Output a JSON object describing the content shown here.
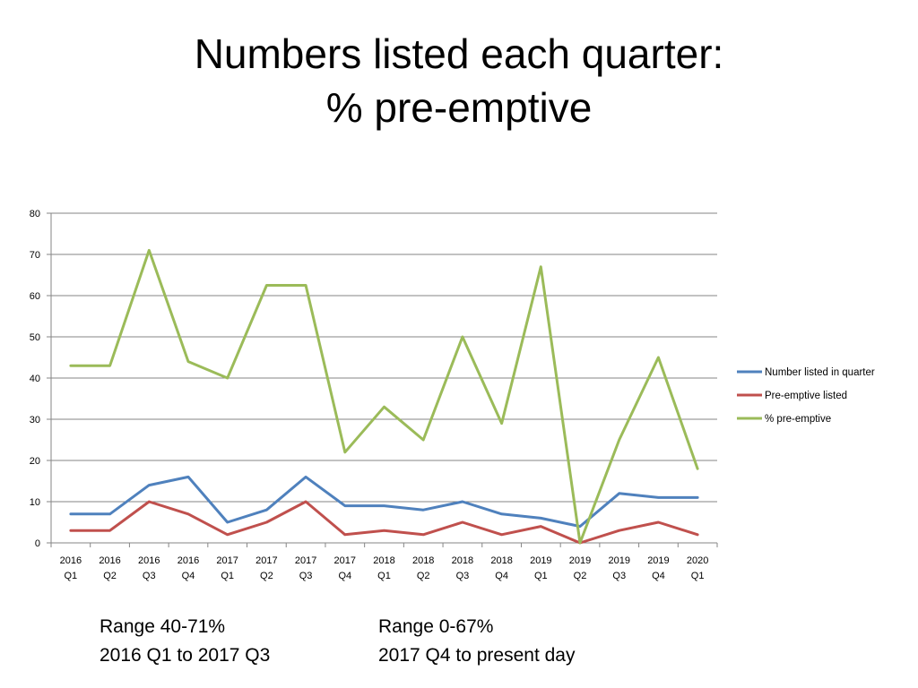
{
  "slide": {
    "title_line1": "Numbers listed each quarter:",
    "title_line2": "% pre-emptive",
    "note_left": {
      "line1": "Range 40-71%",
      "line2": "2016 Q1 to 2017 Q3"
    },
    "note_right": {
      "line1": "Range 0-67%",
      "line2": "2017 Q4 to present day"
    }
  },
  "chart_data": {
    "type": "line",
    "categories": [
      [
        "2016",
        "Q1"
      ],
      [
        "2016",
        "Q2"
      ],
      [
        "2016",
        "Q3"
      ],
      [
        "2016",
        "Q4"
      ],
      [
        "2017",
        "Q1"
      ],
      [
        "2017",
        "Q2"
      ],
      [
        "2017",
        "Q3"
      ],
      [
        "2017",
        "Q4"
      ],
      [
        "2018",
        "Q1"
      ],
      [
        "2018",
        "Q2"
      ],
      [
        "2018",
        "Q3"
      ],
      [
        "2018",
        "Q4"
      ],
      [
        "2019",
        "Q1"
      ],
      [
        "2019",
        "Q2"
      ],
      [
        "2019",
        "Q3"
      ],
      [
        "2019",
        "Q4"
      ],
      [
        "2020",
        "Q1"
      ]
    ],
    "ylim": [
      0,
      80
    ],
    "yticks": [
      0,
      10,
      20,
      30,
      40,
      50,
      60,
      70,
      80
    ],
    "grid": true,
    "legend_position": "right",
    "series": [
      {
        "name": "Number listed in quarter",
        "color": "#4f81bd",
        "values": [
          7,
          7,
          14,
          16,
          5,
          8,
          16,
          9,
          9,
          8,
          10,
          7,
          6,
          4,
          12,
          11,
          11
        ]
      },
      {
        "name": "Pre-emptive listed",
        "color": "#c0504d",
        "values": [
          3,
          3,
          10,
          7,
          2,
          5,
          10,
          2,
          3,
          2,
          5,
          2,
          4,
          0,
          3,
          5,
          2
        ]
      },
      {
        "name": "% pre-emptive",
        "color": "#9bbb59",
        "values": [
          43,
          43,
          71,
          44,
          40,
          62.5,
          62.5,
          22,
          33,
          25,
          50,
          29,
          67,
          0,
          25,
          45,
          18
        ]
      }
    ]
  }
}
